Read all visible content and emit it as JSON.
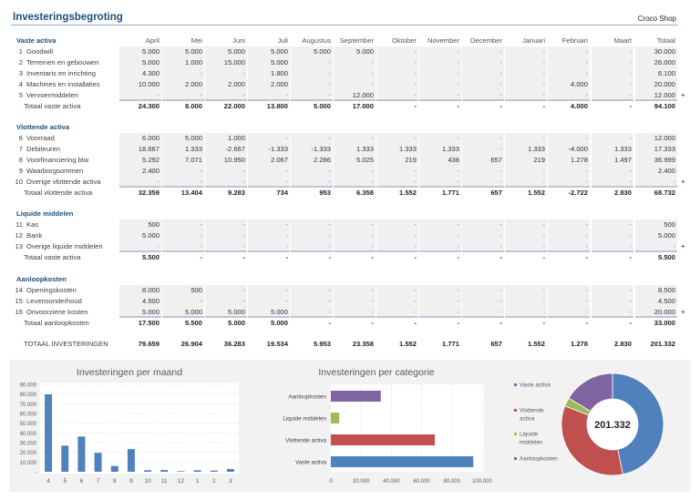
{
  "header": {
    "title": "Investeringsbegroting",
    "company": "Croco Shop"
  },
  "months": [
    "April",
    "Mei",
    "Juni",
    "Juli",
    "Augustus",
    "September",
    "Oktober",
    "November",
    "December",
    "Januari",
    "Februari",
    "Maart",
    "Totaal"
  ],
  "sections": [
    {
      "title": "Vaste activa",
      "rows": [
        {
          "num": "1",
          "name": "Goodwill",
          "values": [
            "5.000",
            "5.000",
            "5.000",
            "5.000",
            "5.000",
            "5.000",
            "-",
            "-",
            "-",
            "-",
            "-",
            "-",
            "30.000"
          ]
        },
        {
          "num": "2",
          "name": "Terreinen en gebouwen",
          "values": [
            "5.000",
            "1.000",
            "15.000",
            "5.000",
            "-",
            "-",
            "-",
            "-",
            "-",
            "-",
            "-",
            "-",
            "26.000"
          ]
        },
        {
          "num": "3",
          "name": "Inventaris en inrichting",
          "values": [
            "4.300",
            "-",
            "-",
            "1.800",
            "-",
            "-",
            "-",
            "-",
            "-",
            "-",
            "-",
            "-",
            "6.100"
          ]
        },
        {
          "num": "4",
          "name": "Machines en installaties",
          "values": [
            "10.000",
            "2.000",
            "2.000",
            "2.000",
            "-",
            "-",
            "-",
            "-",
            "-",
            "-",
            "4.000",
            "-",
            "20.000"
          ]
        },
        {
          "num": "5",
          "name": "Vervoermiddelen",
          "values": [
            "-",
            "-",
            "-",
            "-",
            "-",
            "12.000",
            "-",
            "-",
            "-",
            "-",
            "-",
            "-",
            "12.000"
          ],
          "plus": "+"
        }
      ],
      "total": {
        "label": "Totaal vaste activa",
        "values": [
          "24.300",
          "8.000",
          "22.000",
          "13.800",
          "5.000",
          "17.000",
          "-",
          "-",
          "-",
          "-",
          "4.000",
          "-",
          "94.100"
        ]
      }
    },
    {
      "title": "Vlottende activa",
      "rows": [
        {
          "num": "6",
          "name": "Voorraad",
          "values": [
            "6.000",
            "5.000",
            "1.000",
            "-",
            "-",
            "-",
            "-",
            "-",
            "-",
            "-",
            "-",
            "-",
            "12.000"
          ]
        },
        {
          "num": "7",
          "name": "Debiteuren",
          "values": [
            "18.667",
            "1.333",
            "-2.667",
            "-1.333",
            "-1.333",
            "1.333",
            "1.333",
            "1.333",
            "-",
            "1.333",
            "-4.000",
            "1.333",
            "17.333"
          ]
        },
        {
          "num": "8",
          "name": "Voorfinanciering btw",
          "values": [
            "5.292",
            "7.071",
            "10.950",
            "2.067",
            "2.286",
            "5.025",
            "219",
            "438",
            "657",
            "219",
            "1.278",
            "1.497",
            "36.999"
          ]
        },
        {
          "num": "9",
          "name": "Waarborgsommen",
          "values": [
            "2.400",
            "-",
            "-",
            "-",
            "-",
            "-",
            "-",
            "-",
            "-",
            "-",
            "-",
            "-",
            "2.400"
          ]
        },
        {
          "num": "10",
          "name": "Overige vlottende activa",
          "values": [
            "-",
            "-",
            "-",
            "-",
            "-",
            "-",
            "-",
            "-",
            "-",
            "-",
            "-",
            "-",
            "-"
          ],
          "plus": "+"
        }
      ],
      "total": {
        "label": "Totaal vlottende activa",
        "values": [
          "32.359",
          "13.404",
          "9.283",
          "734",
          "953",
          "6.358",
          "1.552",
          "1.771",
          "657",
          "1.552",
          "-2.722",
          "2.830",
          "68.732"
        ]
      }
    },
    {
      "title": "Liquide middelen",
      "rows": [
        {
          "num": "11",
          "name": "Kas",
          "values": [
            "500",
            "-",
            "-",
            "-",
            "-",
            "-",
            "-",
            "-",
            "-",
            "-",
            "-",
            "-",
            "500"
          ]
        },
        {
          "num": "12",
          "name": "Bank",
          "values": [
            "5.000",
            "-",
            "-",
            "-",
            "-",
            "-",
            "-",
            "-",
            "-",
            "-",
            "-",
            "-",
            "5.000"
          ]
        },
        {
          "num": "13",
          "name": "Overige liquide middelen",
          "values": [
            "-",
            "-",
            "-",
            "-",
            "-",
            "-",
            "-",
            "-",
            "-",
            "-",
            "-",
            "-",
            "-"
          ],
          "plus": "+"
        }
      ],
      "total": {
        "label": "Totaal vaste activa",
        "values": [
          "5.500",
          "-",
          "-",
          "-",
          "-",
          "-",
          "-",
          "-",
          "-",
          "-",
          "-",
          "-",
          "5.500"
        ]
      }
    },
    {
      "title": "Aanloopkosten",
      "rows": [
        {
          "num": "14",
          "name": "Openingskosten",
          "values": [
            "8.000",
            "500",
            "-",
            "-",
            "-",
            "-",
            "-",
            "-",
            "-",
            "-",
            "-",
            "-",
            "8.500"
          ]
        },
        {
          "num": "15",
          "name": "Levensonderhoud",
          "values": [
            "4.500",
            "-",
            "-",
            "-",
            "-",
            "-",
            "-",
            "-",
            "-",
            "-",
            "-",
            "-",
            "4.500"
          ]
        },
        {
          "num": "16",
          "name": "Onvoorziene kosten",
          "values": [
            "5.000",
            "5.000",
            "5.000",
            "5.000",
            "-",
            "-",
            "-",
            "-",
            "-",
            "-",
            "-",
            "-",
            "20.000"
          ],
          "plus": "+"
        }
      ],
      "total": {
        "label": "Totaal aanloopkosten",
        "values": [
          "17.500",
          "5.500",
          "5.000",
          "5.000",
          "-",
          "-",
          "-",
          "-",
          "-",
          "-",
          "-",
          "-",
          "33.000"
        ]
      }
    }
  ],
  "grand_total": {
    "label": "TOTAAL INVESTERINGEN",
    "values": [
      "79.659",
      "26.904",
      "36.283",
      "19.534",
      "5.953",
      "23.358",
      "1.552",
      "1.771",
      "657",
      "1.552",
      "1.278",
      "2.830",
      "201.332"
    ]
  },
  "chart_data": [
    {
      "type": "bar",
      "title": "Investeringen per maand",
      "categories": [
        "4",
        "5",
        "6",
        "7",
        "8",
        "9",
        "10",
        "11",
        "12",
        "1",
        "2",
        "3"
      ],
      "values": [
        79659,
        26904,
        36283,
        19534,
        5953,
        23358,
        1552,
        1771,
        657,
        1552,
        1278,
        2830
      ],
      "ylim": [
        0,
        90000
      ],
      "yticks": [
        "-",
        "10.000",
        "20.000",
        "30.000",
        "40.000",
        "50.000",
        "60.000",
        "70.000",
        "80.000",
        "90.000"
      ],
      "grid": true,
      "color": "#4f81bd"
    },
    {
      "type": "bar",
      "orientation": "horizontal",
      "title": "Investeringen per categorie",
      "categories": [
        "Aanloopkosten",
        "Liquide middelen",
        "Vlottende activa",
        "Vaste activa"
      ],
      "values": [
        33000,
        5500,
        68732,
        94100
      ],
      "colors": [
        "#8064a2",
        "#9bbb59",
        "#c0504d",
        "#4f81bd"
      ],
      "xlim": [
        0,
        100000
      ],
      "xticks": [
        "0",
        "20.000",
        "40.000",
        "60.000",
        "80.000",
        "100.000"
      ],
      "grid": true
    },
    {
      "type": "pie",
      "donut": true,
      "center_label": "201.332",
      "categories": [
        "Vaste activa",
        "Vlottende activa",
        "Liquide middelen",
        "Aanloopkosten"
      ],
      "legend_lines": [
        [
          "Vaste activa"
        ],
        [
          "Vlottende",
          "activa"
        ],
        [
          "Liquide",
          "middelen"
        ],
        [
          "Aanloopkosten"
        ]
      ],
      "values": [
        94100,
        68732,
        5500,
        33000
      ],
      "colors": [
        "#4f81bd",
        "#c0504d",
        "#9bbb59",
        "#8064a2"
      ],
      "legend": "left"
    }
  ]
}
